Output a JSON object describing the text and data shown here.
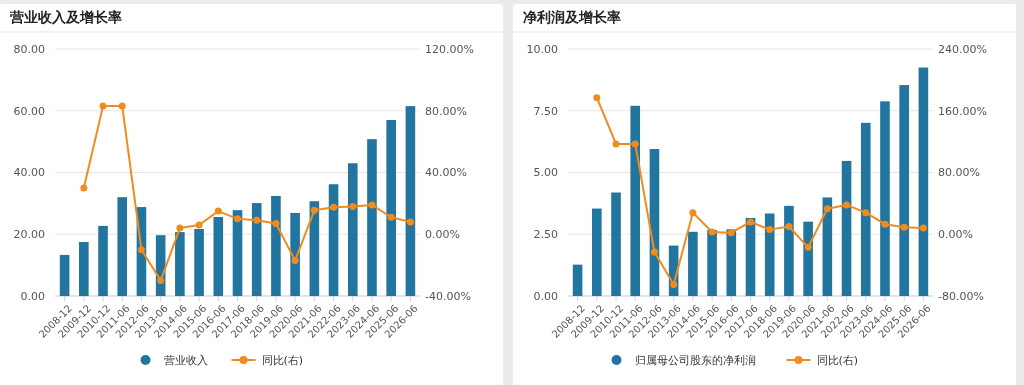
{
  "chart_data": [
    {
      "type": "bar",
      "title": "营业收入及增长率",
      "categories": [
        "2008-12",
        "2009-12",
        "2010-12",
        "2011-06",
        "2012-06",
        "2013-06",
        "2014-06",
        "2015-06",
        "2016-06",
        "2017-06",
        "2018-06",
        "2019-06",
        "2020-06",
        "2021-06",
        "2022-06",
        "2023-06",
        "2024-06",
        "2025-06",
        "2026-06"
      ],
      "series": [
        {
          "name": "营业收入",
          "color": "#21759f",
          "values": [
            13.3,
            17.5,
            22.7,
            32,
            28.8,
            19.7,
            20.7,
            21.7,
            25.6,
            27.8,
            30.1,
            32.4,
            26.9,
            30.7,
            36.2,
            43,
            50.8,
            57,
            61.5
          ]
        },
        {
          "name": "同比(右)",
          "type": "line",
          "axis": "y2",
          "color": "#f28b1e",
          "values": [
            null,
            30,
            83,
            83,
            -10,
            -30,
            4,
            6,
            15,
            10,
            9,
            7,
            -17,
            15.5,
            17.5,
            18,
            19,
            11,
            8
          ]
        }
      ],
      "ylim": [
        0,
        80
      ],
      "yticks": [
        {
          "value": 0,
          "label": "0.00"
        },
        {
          "value": 20,
          "label": "20.00"
        },
        {
          "value": 40,
          "label": "40.00"
        },
        {
          "value": 60,
          "label": "60.00"
        },
        {
          "value": 80,
          "label": "80.00"
        }
      ],
      "y2lim": [
        -40,
        120
      ],
      "y2ticks": [
        {
          "value": -40,
          "label": "-40.00%"
        },
        {
          "value": 0,
          "label": "0.00%"
        },
        {
          "value": 40,
          "label": "40.00%"
        },
        {
          "value": 80,
          "label": "80.00%"
        },
        {
          "value": 120,
          "label": "120.00%"
        }
      ],
      "grid": "y",
      "legend": "bottom",
      "marker": "circle"
    },
    {
      "type": "bar",
      "title": "净利润及增长率",
      "categories": [
        "2008-12",
        "2009-12",
        "2010-12",
        "2011-06",
        "2012-06",
        "2013-06",
        "2014-06",
        "2015-06",
        "2016-06",
        "2017-06",
        "2018-06",
        "2019-06",
        "2020-06",
        "2021-06",
        "2022-06",
        "2023-06",
        "2024-06",
        "2025-06",
        "2026-06"
      ],
      "series": [
        {
          "name": "归属母公司股东的净利润",
          "color": "#21759f",
          "values": [
            1.27,
            3.54,
            4.19,
            7.7,
            5.95,
            2.04,
            2.6,
            2.67,
            2.7,
            3.16,
            3.34,
            3.65,
            3.01,
            3.99,
            5.47,
            7.01,
            7.88,
            8.54,
            9.25
          ]
        },
        {
          "name": "同比(右)",
          "type": "line",
          "axis": "y2",
          "color": "#f28b1e",
          "values": [
            null,
            177,
            117,
            117,
            -23,
            -65,
            28,
            3,
            2,
            16,
            6,
            10,
            -17,
            33,
            38,
            28,
            13,
            9,
            8
          ]
        }
      ],
      "ylim": [
        0,
        10
      ],
      "yticks": [
        {
          "value": 0,
          "label": "0.00"
        },
        {
          "value": 2.5,
          "label": "2.50"
        },
        {
          "value": 5,
          "label": "5.00"
        },
        {
          "value": 7.5,
          "label": "7.50"
        },
        {
          "value": 10,
          "label": "10.00"
        }
      ],
      "y2lim": [
        -80,
        240
      ],
      "y2ticks": [
        {
          "value": -80,
          "label": "-80.00%"
        },
        {
          "value": 0,
          "label": "0.00%"
        },
        {
          "value": 80,
          "label": "80.00%"
        },
        {
          "value": 160,
          "label": "160.00%"
        },
        {
          "value": 240,
          "label": "240.00%"
        }
      ],
      "grid": "y",
      "legend": "bottom",
      "marker": "circle"
    }
  ]
}
